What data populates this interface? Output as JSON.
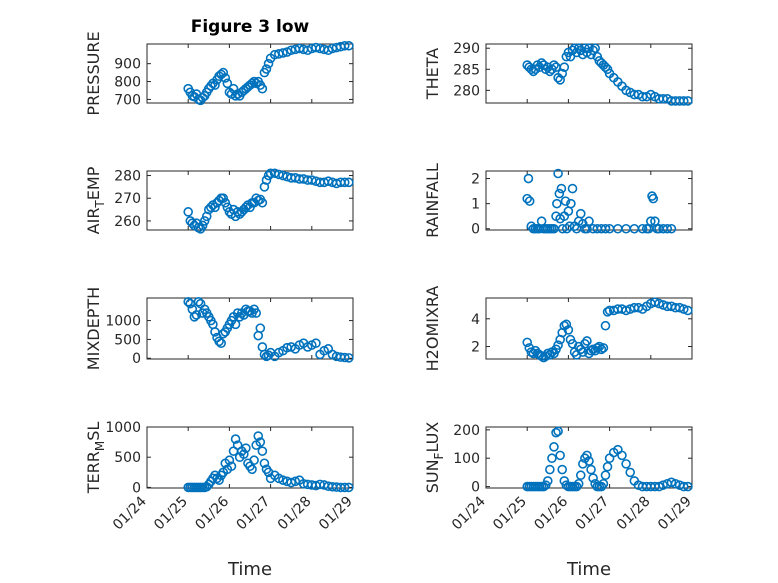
{
  "chart_data": [
    {
      "type": "scatter",
      "title": "Figure 3 low",
      "ylabel_parts": [
        {
          "t": "PRESSURE"
        }
      ],
      "ylim": [
        680,
        1010
      ],
      "yticks": [
        700,
        800,
        900
      ],
      "x": [
        25.0,
        25.05,
        25.1,
        25.15,
        25.2,
        25.25,
        25.3,
        25.35,
        25.4,
        25.45,
        25.5,
        25.55,
        25.6,
        25.65,
        25.7,
        25.75,
        25.8,
        25.85,
        25.9,
        25.95,
        26.0,
        26.05,
        26.1,
        26.15,
        26.2,
        26.25,
        26.3,
        26.35,
        26.4,
        26.45,
        26.5,
        26.55,
        26.6,
        26.65,
        26.7,
        26.75,
        26.8,
        26.85,
        26.9,
        26.95,
        27.0,
        27.1,
        27.2,
        27.3,
        27.4,
        27.5,
        27.6,
        27.7,
        27.8,
        27.9,
        28.0,
        28.1,
        28.2,
        28.3,
        28.4,
        28.5,
        28.6,
        28.7,
        28.8,
        28.9
      ],
      "y": [
        760,
        740,
        720,
        715,
        730,
        700,
        695,
        710,
        720,
        740,
        760,
        775,
        790,
        780,
        810,
        830,
        840,
        850,
        820,
        790,
        740,
        730,
        760,
        720,
        730,
        720,
        740,
        750,
        760,
        770,
        780,
        790,
        800,
        790,
        800,
        780,
        760,
        850,
        870,
        900,
        930,
        950,
        955,
        960,
        965,
        975,
        980,
        985,
        980,
        975,
        985,
        990,
        985,
        980,
        975,
        985,
        990,
        995,
        1000,
        1000
      ],
      "xlabel": "",
      "show_xticklabels": false
    },
    {
      "type": "scatter",
      "title": "",
      "ylabel_parts": [
        {
          "t": "THETA"
        }
      ],
      "ylim": [
        277,
        291
      ],
      "yticks": [
        280,
        285,
        290
      ],
      "x": [
        25.0,
        25.05,
        25.1,
        25.15,
        25.2,
        25.25,
        25.3,
        25.35,
        25.4,
        25.45,
        25.5,
        25.55,
        25.6,
        25.65,
        25.7,
        25.75,
        25.8,
        25.85,
        25.9,
        25.95,
        26.0,
        26.05,
        26.1,
        26.15,
        26.2,
        26.25,
        26.3,
        26.35,
        26.4,
        26.45,
        26.5,
        26.55,
        26.6,
        26.65,
        26.7,
        26.75,
        26.8,
        26.85,
        26.9,
        26.95,
        27.0,
        27.1,
        27.2,
        27.3,
        27.4,
        27.5,
        27.6,
        27.7,
        27.8,
        27.9,
        28.0,
        28.1,
        28.2,
        28.3,
        28.4,
        28.5,
        28.6,
        28.7,
        28.8,
        28.9
      ],
      "y": [
        286,
        285.5,
        285,
        284.5,
        285,
        286,
        285.5,
        286.5,
        286,
        285,
        285.5,
        284.5,
        285,
        286,
        285.5,
        283,
        282.5,
        284,
        285.5,
        288,
        289,
        288,
        289.5,
        290,
        289,
        290,
        289.5,
        288.5,
        290,
        289,
        290,
        288.5,
        289.5,
        290,
        288,
        287,
        286.5,
        286,
        285.5,
        285,
        284,
        283,
        282,
        281,
        280,
        279.5,
        279,
        279,
        278.5,
        278.5,
        279,
        278.5,
        278,
        278,
        278,
        277.5,
        277.5,
        277.5,
        277.5,
        277.5
      ],
      "xlabel": "",
      "show_xticklabels": false
    },
    {
      "type": "scatter",
      "title": "",
      "ylabel_parts": [
        {
          "t": "AIR"
        },
        {
          "t": "T",
          "sub": true
        },
        {
          "t": "EMP"
        }
      ],
      "ylim": [
        256,
        282
      ],
      "yticks": [
        260,
        270,
        280
      ],
      "x": [
        25.0,
        25.05,
        25.1,
        25.15,
        25.2,
        25.25,
        25.3,
        25.35,
        25.4,
        25.45,
        25.5,
        25.55,
        25.6,
        25.65,
        25.7,
        25.75,
        25.8,
        25.85,
        25.9,
        25.95,
        26.0,
        26.05,
        26.1,
        26.15,
        26.2,
        26.25,
        26.3,
        26.35,
        26.4,
        26.45,
        26.5,
        26.55,
        26.6,
        26.65,
        26.7,
        26.75,
        26.8,
        26.85,
        26.9,
        26.95,
        27.0,
        27.1,
        27.2,
        27.3,
        27.4,
        27.5,
        27.6,
        27.7,
        27.8,
        27.9,
        28.0,
        28.1,
        28.2,
        28.3,
        28.4,
        28.5,
        28.6,
        28.7,
        28.8,
        28.9
      ],
      "y": [
        264,
        260,
        259,
        258,
        259,
        257,
        256.5,
        258,
        260,
        262,
        265,
        266,
        267,
        266,
        268,
        269,
        270,
        270,
        268,
        266,
        264,
        263,
        265,
        262,
        264,
        263,
        264,
        265,
        266,
        267,
        266,
        268,
        268,
        270,
        269,
        269.5,
        268,
        275,
        278,
        280,
        281,
        281,
        280.5,
        280,
        279.5,
        279,
        279,
        278.5,
        278.5,
        278,
        278,
        277.5,
        277,
        277,
        277.5,
        277,
        276.5,
        277,
        277,
        277
      ],
      "xlabel": "",
      "show_xticklabels": false
    },
    {
      "type": "scatter",
      "title": "",
      "ylabel_parts": [
        {
          "t": "RAINFALL"
        }
      ],
      "ylim": [
        -0.05,
        2.3
      ],
      "yticks": [
        0,
        1,
        2
      ],
      "x": [
        25.0,
        25.03,
        25.06,
        25.1,
        25.15,
        25.2,
        25.25,
        25.3,
        25.35,
        25.4,
        25.45,
        25.5,
        25.55,
        25.6,
        25.65,
        25.7,
        25.72,
        25.75,
        25.78,
        25.8,
        25.83,
        25.86,
        25.9,
        25.93,
        25.96,
        26.0,
        26.03,
        26.06,
        26.1,
        26.15,
        26.2,
        26.25,
        26.3,
        26.35,
        26.4,
        26.45,
        26.5,
        26.6,
        26.7,
        26.8,
        26.9,
        27.0,
        27.2,
        27.4,
        27.6,
        27.8,
        27.9,
        27.95,
        28.0,
        28.03,
        28.06,
        28.1,
        28.15,
        28.2,
        28.3,
        28.4,
        28.5
      ],
      "y": [
        1.2,
        2.0,
        1.1,
        0.1,
        0.0,
        0.0,
        0.0,
        0.0,
        0.3,
        0.0,
        0.0,
        0.0,
        0.0,
        0.0,
        0.0,
        0.5,
        1.0,
        2.2,
        1.4,
        0.4,
        1.6,
        0.0,
        0.5,
        1.1,
        0.0,
        0.7,
        0.1,
        1.0,
        1.6,
        0.1,
        0.0,
        0.3,
        0.6,
        0.2,
        0.0,
        0.0,
        0.3,
        0.0,
        0.0,
        0.0,
        0.0,
        0.0,
        0.0,
        0.0,
        0.0,
        0.0,
        0.0,
        0.0,
        0.3,
        1.3,
        1.2,
        0.3,
        0.0,
        0.0,
        0.0,
        0.0,
        0.0
      ],
      "xlabel": "",
      "show_xticklabels": false
    },
    {
      "type": "scatter",
      "title": "",
      "ylabel_parts": [
        {
          "t": "MIXDEPTH"
        }
      ],
      "ylim": [
        -20,
        1600
      ],
      "yticks": [
        0,
        500,
        1000
      ],
      "x": [
        25.0,
        25.05,
        25.1,
        25.15,
        25.2,
        25.25,
        25.3,
        25.35,
        25.4,
        25.45,
        25.5,
        25.55,
        25.6,
        25.65,
        25.7,
        25.75,
        25.8,
        25.85,
        25.9,
        25.95,
        26.0,
        26.05,
        26.1,
        26.15,
        26.2,
        26.25,
        26.3,
        26.35,
        26.4,
        26.45,
        26.5,
        26.55,
        26.6,
        26.65,
        26.7,
        26.75,
        26.8,
        26.85,
        26.9,
        26.95,
        27.0,
        27.1,
        27.2,
        27.3,
        27.4,
        27.5,
        27.6,
        27.7,
        27.8,
        27.9,
        28.0,
        28.1,
        28.2,
        28.3,
        28.4,
        28.5,
        28.6,
        28.7,
        28.8,
        28.9
      ],
      "y": [
        1500,
        1450,
        1300,
        1100,
        1150,
        1500,
        1450,
        1200,
        1300,
        1200,
        1100,
        1000,
        900,
        700,
        550,
        450,
        400,
        650,
        700,
        800,
        900,
        1000,
        1100,
        900,
        1200,
        1100,
        1200,
        1150,
        1300,
        1250,
        1250,
        1200,
        1300,
        1200,
        600,
        800,
        300,
        100,
        50,
        80,
        150,
        50,
        150,
        200,
        280,
        300,
        250,
        350,
        400,
        300,
        350,
        400,
        100,
        200,
        250,
        100,
        50,
        30,
        20,
        10
      ],
      "xlabel": "",
      "show_xticklabels": false
    },
    {
      "type": "scatter",
      "title": "",
      "ylabel_parts": [
        {
          "t": "H2OMIXRA"
        }
      ],
      "ylim": [
        1.1,
        5.5
      ],
      "yticks": [
        2,
        4
      ],
      "x": [
        25.0,
        25.05,
        25.1,
        25.15,
        25.2,
        25.25,
        25.3,
        25.35,
        25.4,
        25.45,
        25.5,
        25.55,
        25.6,
        25.65,
        25.7,
        25.75,
        25.8,
        25.85,
        25.9,
        25.95,
        26.0,
        26.05,
        26.1,
        26.15,
        26.2,
        26.25,
        26.3,
        26.35,
        26.4,
        26.45,
        26.5,
        26.55,
        26.6,
        26.65,
        26.7,
        26.75,
        26.8,
        26.85,
        26.9,
        26.95,
        27.0,
        27.1,
        27.2,
        27.3,
        27.4,
        27.5,
        27.6,
        27.7,
        27.8,
        27.9,
        28.0,
        28.1,
        28.2,
        28.3,
        28.4,
        28.5,
        28.6,
        28.7,
        28.8,
        28.9
      ],
      "y": [
        2.3,
        1.9,
        1.6,
        1.5,
        1.7,
        1.5,
        1.4,
        1.3,
        1.2,
        1.3,
        1.5,
        1.4,
        1.6,
        1.5,
        1.8,
        2.1,
        2.5,
        3.0,
        3.5,
        3.6,
        3.2,
        2.5,
        2.2,
        1.6,
        1.4,
        2.0,
        1.8,
        1.6,
        2.2,
        2.4,
        1.5,
        1.7,
        1.8,
        1.7,
        1.9,
        2.0,
        1.8,
        1.9,
        3.5,
        4.5,
        4.6,
        4.6,
        4.7,
        4.7,
        4.6,
        4.7,
        4.8,
        4.8,
        4.7,
        4.9,
        5.1,
        5.2,
        5.1,
        5.0,
        4.9,
        4.9,
        4.8,
        4.8,
        4.7,
        4.6
      ],
      "xlabel": "",
      "show_xticklabels": false
    },
    {
      "type": "scatter",
      "title": "",
      "ylabel_parts": [
        {
          "t": "TERR"
        },
        {
          "t": "M",
          "sub": true
        },
        {
          "t": "SL"
        }
      ],
      "ylim": [
        -10,
        1000
      ],
      "yticks": [
        0,
        500,
        1000
      ],
      "x": [
        25.0,
        25.05,
        25.1,
        25.15,
        25.2,
        25.25,
        25.3,
        25.35,
        25.4,
        25.45,
        25.5,
        25.55,
        25.6,
        25.65,
        25.7,
        25.75,
        25.8,
        25.85,
        25.9,
        25.95,
        26.0,
        26.05,
        26.1,
        26.15,
        26.2,
        26.25,
        26.3,
        26.35,
        26.4,
        26.45,
        26.5,
        26.55,
        26.6,
        26.65,
        26.7,
        26.75,
        26.8,
        26.85,
        26.9,
        26.95,
        27.0,
        27.1,
        27.2,
        27.3,
        27.4,
        27.5,
        27.6,
        27.7,
        27.8,
        27.9,
        28.0,
        28.1,
        28.2,
        28.3,
        28.4,
        28.5,
        28.6,
        28.7,
        28.8,
        28.9
      ],
      "y": [
        0,
        0,
        0,
        0,
        0,
        0,
        0,
        0,
        0,
        10,
        50,
        100,
        150,
        200,
        150,
        120,
        200,
        250,
        400,
        300,
        450,
        350,
        600,
        800,
        700,
        500,
        600,
        550,
        650,
        400,
        350,
        300,
        450,
        700,
        850,
        750,
        600,
        400,
        300,
        250,
        150,
        200,
        150,
        120,
        100,
        80,
        100,
        120,
        60,
        50,
        40,
        30,
        50,
        40,
        20,
        10,
        5,
        0,
        0,
        0
      ],
      "xlabel": "Time",
      "show_xticklabels": true
    },
    {
      "type": "scatter",
      "title": "",
      "ylabel_parts": [
        {
          "t": "SUN"
        },
        {
          "t": "F",
          "sub": true
        },
        {
          "t": "LUX"
        }
      ],
      "ylim": [
        -5,
        210
      ],
      "yticks": [
        0,
        100,
        200
      ],
      "x": [
        25.0,
        25.05,
        25.1,
        25.15,
        25.2,
        25.25,
        25.3,
        25.35,
        25.4,
        25.45,
        25.5,
        25.55,
        25.6,
        25.65,
        25.7,
        25.75,
        25.8,
        25.85,
        25.9,
        25.95,
        26.0,
        26.05,
        26.1,
        26.15,
        26.2,
        26.25,
        26.3,
        26.35,
        26.4,
        26.45,
        26.5,
        26.55,
        26.6,
        26.65,
        26.7,
        26.75,
        26.8,
        26.85,
        26.9,
        26.95,
        27.0,
        27.1,
        27.2,
        27.3,
        27.4,
        27.5,
        27.6,
        27.7,
        27.8,
        27.9,
        28.0,
        28.1,
        28.2,
        28.3,
        28.4,
        28.5,
        28.6,
        28.7,
        28.8,
        28.9
      ],
      "y": [
        0,
        0,
        0,
        0,
        0,
        0,
        0,
        0,
        0,
        5,
        20,
        60,
        100,
        140,
        190,
        195,
        110,
        60,
        20,
        5,
        0,
        0,
        0,
        0,
        0,
        10,
        40,
        80,
        100,
        110,
        90,
        60,
        30,
        10,
        0,
        0,
        0,
        10,
        40,
        70,
        100,
        120,
        130,
        110,
        80,
        50,
        20,
        5,
        0,
        0,
        0,
        0,
        0,
        5,
        10,
        15,
        10,
        5,
        0,
        0
      ],
      "xlabel": "Time",
      "show_xticklabels": true
    }
  ],
  "x_axis": {
    "xlim": [
      24,
      29
    ],
    "ticks": [
      24,
      25,
      26,
      27,
      28,
      29
    ],
    "tick_labels": [
      "01/24",
      "01/25",
      "01/26",
      "01/27",
      "01/28",
      "01/29"
    ]
  },
  "colors": {
    "marker": "#0072BD",
    "axes": "#262626",
    "grid": "#d9d9d9"
  },
  "grid": true,
  "minor_grid": true
}
